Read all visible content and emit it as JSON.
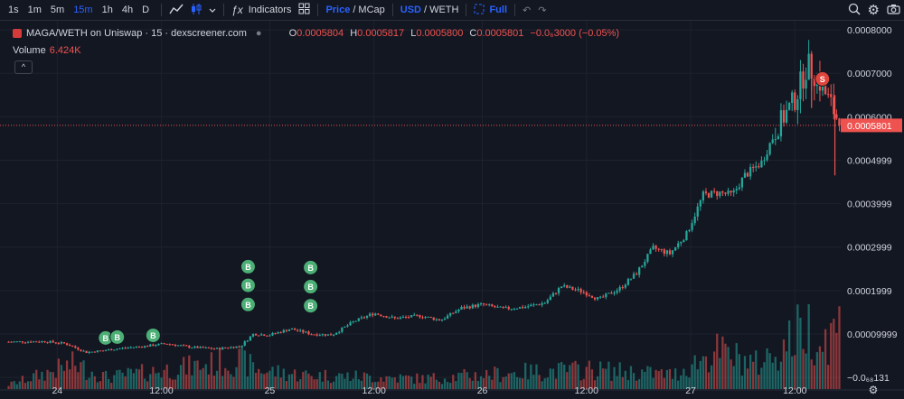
{
  "toolbar": {
    "timeframes": [
      "1s",
      "1m",
      "5m",
      "15m",
      "1h",
      "4h",
      "D"
    ],
    "active_timeframe": "15m",
    "indicators_label": "Indicators",
    "price_label": "Price",
    "mcap_label": "MCap",
    "usd_label": "USD",
    "weth_label": "WETH",
    "full_label": "Full",
    "icons": [
      "chevron-down-icon",
      "line-chart-icon",
      "candles-icon",
      "fx-icon",
      "layout-icon",
      "fullscreen-icon",
      "undo-icon",
      "redo-icon",
      "alert-icon",
      "gear-icon",
      "camera-icon"
    ]
  },
  "legend": {
    "title": "MAGA/WETH on Uniswap · 15 · dexscreener.com",
    "o_label": "O",
    "o": "0.0005804",
    "h_label": "H",
    "h": "0.0005817",
    "l_label": "L",
    "l": "0.0005800",
    "c_label": "C",
    "c": "0.0005801",
    "change": "−0.0₆3000 (−0.05%)",
    "volume_label": "Volume",
    "volume": "6.424K",
    "collapse": "^"
  },
  "colors": {
    "up": "#26a69a",
    "down": "#ef5350",
    "bg": "#131722",
    "grid": "#1e222d",
    "marker_buy": "#4caf75",
    "marker_sell": "#e0453c"
  },
  "chart_data": {
    "type": "candlestick",
    "y_tick_labels": [
      "0.0008000",
      "0.0007000",
      "0.0006000",
      "0.0004999",
      "0.0003999",
      "0.0002999",
      "0.0001999",
      "0.00009999",
      "−0.0₆₈131"
    ],
    "x_tick_labels": [
      "24",
      "12:00",
      "25",
      "12:00",
      "26",
      "12:00",
      "27",
      "12:00"
    ],
    "ylim": [
      -1e-05,
      0.0008
    ],
    "current_price": 0.0005801,
    "current_price_label": "0.0005801",
    "price_path": [
      [
        0.0,
        8.2e-05
      ],
      [
        0.045,
        8.3e-05
      ],
      [
        0.07,
        7.8e-05
      ],
      [
        0.095,
        5.8e-05
      ],
      [
        0.115,
        6.2e-05
      ],
      [
        0.14,
        6.8e-05
      ],
      [
        0.165,
        7.2e-05
      ],
      [
        0.19,
        7.8e-05
      ],
      [
        0.22,
        7e-05
      ],
      [
        0.25,
        6.6e-05
      ],
      [
        0.28,
        7.2e-05
      ],
      [
        0.295,
        0.0001
      ],
      [
        0.315,
        9.8e-05
      ],
      [
        0.34,
        0.000112
      ],
      [
        0.365,
        0.0001
      ],
      [
        0.39,
        9.8e-05
      ],
      [
        0.415,
        0.000128
      ],
      [
        0.44,
        0.000148
      ],
      [
        0.465,
        0.000136
      ],
      [
        0.495,
        0.000142
      ],
      [
        0.52,
        0.000132
      ],
      [
        0.545,
        0.00016
      ],
      [
        0.57,
        0.000168
      ],
      [
        0.595,
        0.000158
      ],
      [
        0.62,
        0.000162
      ],
      [
        0.645,
        0.000172
      ],
      [
        0.665,
        0.00021
      ],
      [
        0.69,
        0.000198
      ],
      [
        0.71,
        0.00018
      ],
      [
        0.735,
        0.000205
      ],
      [
        0.755,
        0.00024
      ],
      [
        0.775,
        0.000298
      ],
      [
        0.795,
        0.000285
      ],
      [
        0.815,
        0.00033
      ],
      [
        0.835,
        0.00042
      ],
      [
        0.855,
        0.000425
      ],
      [
        0.87,
        0.00042
      ],
      [
        0.885,
        0.000465
      ],
      [
        0.905,
        0.000495
      ],
      [
        0.925,
        0.00058
      ],
      [
        0.945,
        0.00064
      ],
      [
        0.96,
        0.00072
      ],
      [
        0.972,
        0.00069
      ],
      [
        0.985,
        0.00064
      ],
      [
        1.0,
        0.0005801
      ]
    ],
    "volume_series": [
      [
        0.0,
        0.06
      ],
      [
        0.08,
        0.38
      ],
      [
        0.12,
        0.18
      ],
      [
        0.28,
        0.44
      ],
      [
        0.3,
        0.3
      ],
      [
        0.35,
        0.22
      ],
      [
        0.5,
        0.16
      ],
      [
        0.62,
        0.26
      ],
      [
        0.7,
        0.3
      ],
      [
        0.8,
        0.22
      ],
      [
        0.85,
        0.58
      ],
      [
        0.9,
        0.38
      ],
      [
        0.93,
        0.64
      ],
      [
        0.96,
        1.0
      ],
      [
        0.975,
        0.7
      ],
      [
        1.0,
        0.98
      ]
    ],
    "markers": [
      {
        "label": "B",
        "x": 0.118,
        "price": 9.1e-05
      },
      {
        "label": "B",
        "x": 0.132,
        "price": 9.3e-05
      },
      {
        "label": "B",
        "x": 0.175,
        "price": 9.7e-05
      },
      {
        "label": "B",
        "x": 0.289,
        "price": 0.000255
      },
      {
        "label": "B",
        "x": 0.289,
        "price": 0.000212
      },
      {
        "label": "B",
        "x": 0.289,
        "price": 0.000168
      },
      {
        "label": "B",
        "x": 0.364,
        "price": 0.000253
      },
      {
        "label": "B",
        "x": 0.364,
        "price": 0.000209
      },
      {
        "label": "B",
        "x": 0.364,
        "price": 0.000165
      },
      {
        "label": "S",
        "x": 0.978,
        "price": 0.000687
      }
    ]
  }
}
